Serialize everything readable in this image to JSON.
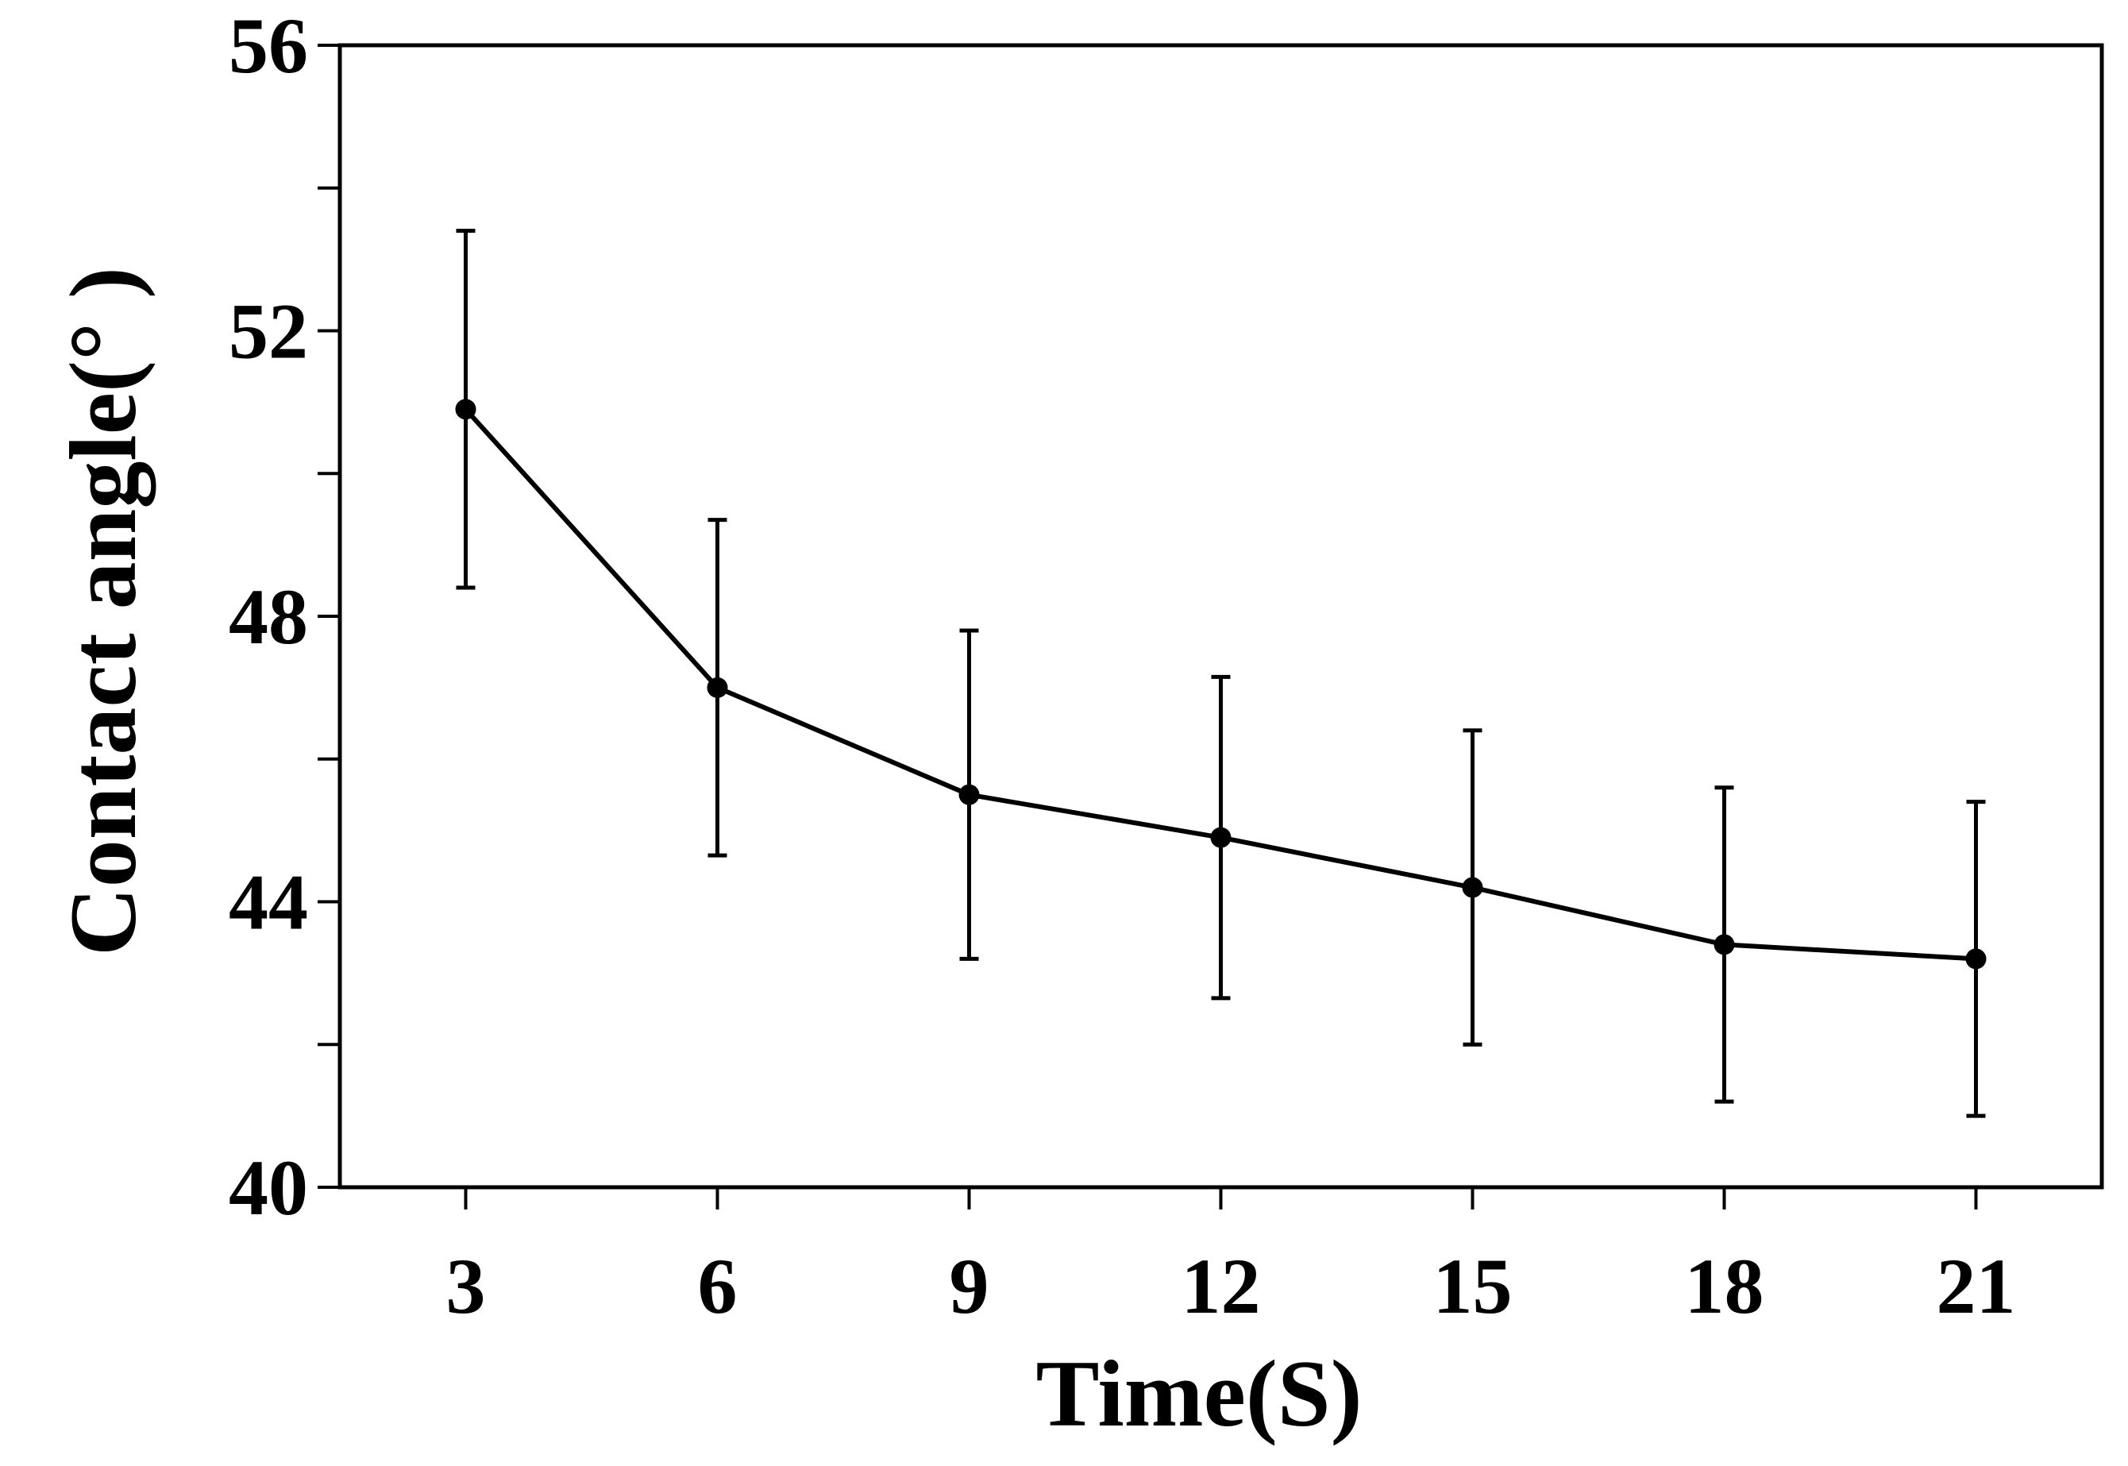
{
  "chart_data": {
    "type": "line",
    "title": "",
    "xlabel": "Time(S)",
    "ylabel": "Contact angle(°  )",
    "x": [
      3,
      6,
      9,
      12,
      15,
      18,
      21
    ],
    "xticks": [
      3,
      6,
      9,
      12,
      15,
      18,
      21
    ],
    "xlim": [
      1.5,
      22.5
    ],
    "yticks": [
      40,
      44,
      48,
      52,
      56
    ],
    "ylim": [
      40,
      56
    ],
    "grid": false,
    "legend": "none",
    "series": [
      {
        "name": "Contact angle",
        "color": "#000000",
        "values": [
          50.9,
          47.0,
          45.5,
          44.9,
          44.2,
          43.4,
          43.2
        ],
        "error": [
          2.5,
          2.35,
          2.3,
          2.25,
          2.2,
          2.2,
          2.2
        ]
      }
    ]
  }
}
